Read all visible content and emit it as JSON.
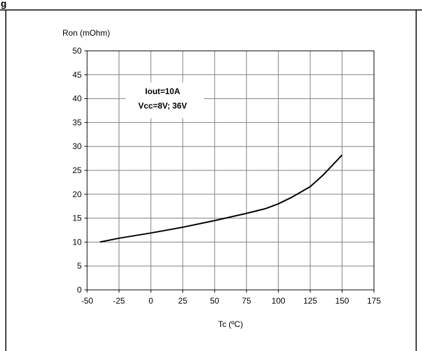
{
  "header_fragment": "g",
  "chart_data": {
    "type": "line",
    "title": "",
    "ylabel": "Ron (mOhm)",
    "xlabel": "Tc (ºC)",
    "xlim": [
      -50,
      175
    ],
    "ylim": [
      0,
      50
    ],
    "x_ticks": [
      -50,
      -25,
      0,
      25,
      50,
      75,
      100,
      125,
      150,
      175
    ],
    "y_ticks": [
      0,
      5,
      10,
      15,
      20,
      25,
      30,
      35,
      40,
      45,
      50
    ],
    "grid": true,
    "annotation": [
      "Iout=10A",
      "Vcc=8V; 36V"
    ],
    "series": [
      {
        "color": "#000000",
        "x": [
          -40,
          -25,
          0,
          25,
          50,
          75,
          90,
          100,
          110,
          125,
          135,
          150
        ],
        "y": [
          10,
          10.8,
          11.9,
          13.1,
          14.5,
          16,
          17,
          18,
          19.3,
          21.6,
          24,
          28.2
        ]
      }
    ]
  }
}
